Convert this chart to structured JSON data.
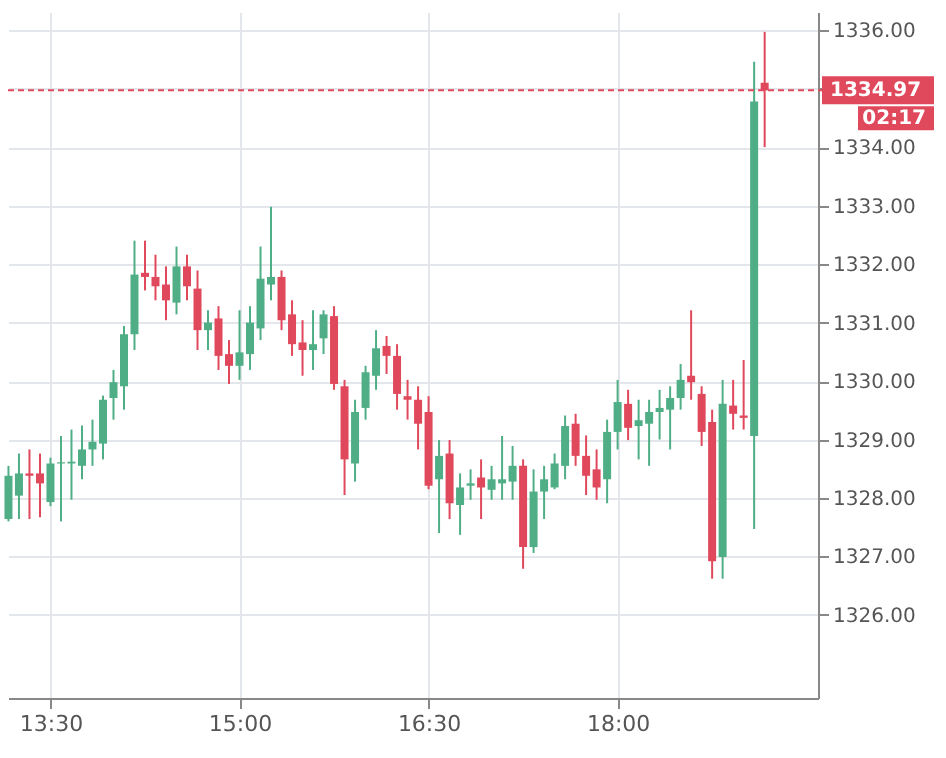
{
  "chart_data": {
    "type": "candlestick",
    "x": [
      13.1667,
      13.25,
      13.3333,
      13.4167,
      13.5,
      13.5833,
      13.6667,
      13.75,
      13.8333,
      13.9167,
      14.0,
      14.0833,
      14.1667,
      14.25,
      14.3333,
      14.4167,
      14.5,
      14.5833,
      14.6667,
      14.75,
      14.8333,
      14.9167,
      15.0,
      15.0833,
      15.1667,
      15.25,
      15.3333,
      15.4167,
      15.5,
      15.5833,
      15.6667,
      15.75,
      15.8333,
      15.9167,
      16.0,
      16.0833,
      16.1667,
      16.25,
      16.3333,
      16.4167,
      16.5,
      16.5833,
      16.6667,
      16.75,
      16.8333,
      16.9167,
      17.0,
      17.0833,
      17.1667,
      17.25,
      17.3333,
      17.4167,
      17.5,
      17.5833,
      17.6667,
      17.75,
      17.8333,
      17.9167,
      18.0,
      18.0833,
      18.1667,
      18.25,
      18.3333,
      18.4167,
      18.5,
      18.5833,
      18.6667,
      18.75,
      18.8333,
      18.9167,
      19.0,
      19.0833,
      19.1667
    ],
    "ohlc": [
      [
        1327.64,
        1328.55,
        1327.6,
        1328.38
      ],
      [
        1328.04,
        1328.76,
        1327.64,
        1328.42
      ],
      [
        1328.42,
        1328.83,
        1327.64,
        1328.38
      ],
      [
        1328.42,
        1328.76,
        1327.67,
        1328.25
      ],
      [
        1327.93,
        1328.69,
        1327.86,
        1328.59
      ],
      [
        1328.59,
        1329.06,
        1327.6,
        1328.61
      ],
      [
        1328.59,
        1329.17,
        1327.97,
        1328.62
      ],
      [
        1328.55,
        1329.24,
        1328.32,
        1328.83
      ],
      [
        1328.83,
        1329.34,
        1328.55,
        1328.96
      ],
      [
        1328.93,
        1329.75,
        1328.66,
        1329.68
      ],
      [
        1329.71,
        1330.19,
        1329.34,
        1329.98
      ],
      [
        1329.91,
        1330.94,
        1329.51,
        1330.8
      ],
      [
        1330.8,
        1332.4,
        1330.53,
        1331.82
      ],
      [
        1331.85,
        1332.4,
        1331.55,
        1331.78
      ],
      [
        1331.78,
        1332.16,
        1331.38,
        1331.62
      ],
      [
        1331.65,
        1331.96,
        1331.04,
        1331.38
      ],
      [
        1331.34,
        1332.3,
        1331.14,
        1331.96
      ],
      [
        1331.96,
        1332.16,
        1331.38,
        1331.62
      ],
      [
        1331.58,
        1331.89,
        1330.53,
        1330.87
      ],
      [
        1330.87,
        1331.21,
        1330.53,
        1331.0
      ],
      [
        1331.07,
        1331.28,
        1330.19,
        1330.43
      ],
      [
        1330.46,
        1330.7,
        1329.95,
        1330.26
      ],
      [
        1330.26,
        1331.21,
        1330.02,
        1330.49
      ],
      [
        1330.46,
        1331.28,
        1330.19,
        1331.0
      ],
      [
        1330.9,
        1332.3,
        1330.7,
        1331.75
      ],
      [
        1331.65,
        1332.98,
        1331.38,
        1331.78
      ],
      [
        1331.78,
        1331.89,
        1330.87,
        1331.04
      ],
      [
        1331.14,
        1331.38,
        1330.43,
        1330.63
      ],
      [
        1330.66,
        1331.04,
        1330.09,
        1330.53
      ],
      [
        1330.53,
        1331.21,
        1330.19,
        1330.63
      ],
      [
        1330.73,
        1331.21,
        1330.46,
        1331.14
      ],
      [
        1331.11,
        1331.28,
        1329.85,
        1329.95
      ],
      [
        1329.91,
        1330.02,
        1328.05,
        1328.66
      ],
      [
        1328.59,
        1329.68,
        1328.28,
        1329.47
      ],
      [
        1329.54,
        1330.26,
        1329.34,
        1330.15
      ],
      [
        1330.09,
        1330.87,
        1329.85,
        1330.56
      ],
      [
        1330.6,
        1330.77,
        1330.12,
        1330.43
      ],
      [
        1330.43,
        1330.63,
        1329.51,
        1329.78
      ],
      [
        1329.74,
        1330.02,
        1329.34,
        1329.68
      ],
      [
        1329.68,
        1329.91,
        1328.83,
        1329.27
      ],
      [
        1329.47,
        1329.74,
        1328.15,
        1328.21
      ],
      [
        1328.32,
        1328.99,
        1327.4,
        1328.72
      ],
      [
        1328.76,
        1328.99,
        1327.64,
        1327.91
      ],
      [
        1327.88,
        1328.42,
        1327.37,
        1328.18
      ],
      [
        1328.21,
        1328.49,
        1327.97,
        1328.25
      ],
      [
        1328.35,
        1328.66,
        1327.64,
        1328.18
      ],
      [
        1328.14,
        1328.55,
        1327.97,
        1328.32
      ],
      [
        1328.25,
        1329.06,
        1327.97,
        1328.32
      ],
      [
        1328.28,
        1328.89,
        1327.97,
        1328.55
      ],
      [
        1328.55,
        1328.66,
        1326.79,
        1327.16
      ],
      [
        1327.16,
        1328.49,
        1327.06,
        1328.11
      ],
      [
        1328.11,
        1328.55,
        1327.64,
        1328.32
      ],
      [
        1328.18,
        1328.76,
        1328.15,
        1328.59
      ],
      [
        1328.55,
        1329.41,
        1328.32,
        1329.23
      ],
      [
        1329.27,
        1329.44,
        1328.55,
        1328.72
      ],
      [
        1328.72,
        1329.07,
        1328.05,
        1328.38
      ],
      [
        1328.49,
        1328.83,
        1327.97,
        1328.18
      ],
      [
        1328.32,
        1329.34,
        1327.91,
        1329.13
      ],
      [
        1329.13,
        1330.02,
        1328.83,
        1329.64
      ],
      [
        1329.61,
        1329.85,
        1328.99,
        1329.2
      ],
      [
        1329.23,
        1329.68,
        1328.66,
        1329.33
      ],
      [
        1329.27,
        1329.68,
        1328.55,
        1329.47
      ],
      [
        1329.47,
        1329.85,
        1329.0,
        1329.54
      ],
      [
        1329.51,
        1329.91,
        1328.83,
        1329.71
      ],
      [
        1329.71,
        1330.29,
        1329.51,
        1330.02
      ],
      [
        1330.09,
        1331.21,
        1329.68,
        1329.98
      ],
      [
        1329.78,
        1329.91,
        1328.89,
        1329.13
      ],
      [
        1329.3,
        1329.51,
        1326.62,
        1326.92
      ],
      [
        1326.99,
        1330.02,
        1326.62,
        1329.61
      ],
      [
        1329.58,
        1330.02,
        1329.17,
        1329.44
      ],
      [
        1329.41,
        1330.36,
        1329.17,
        1329.37
      ],
      [
        1329.06,
        1335.46,
        1327.47,
        1334.78
      ],
      [
        1335.1,
        1335.97,
        1334.0,
        1334.97
      ]
    ],
    "colors": [
      "#4fae85",
      "#4fae85",
      "#e0485c",
      "#e0485c",
      "#4fae85",
      "#4fae85",
      "#4fae85",
      "#4fae85",
      "#4fae85",
      "#4fae85",
      "#4fae85",
      "#4fae85",
      "#4fae85",
      "#e0485c",
      "#e0485c",
      "#e0485c",
      "#4fae85",
      "#e0485c",
      "#e0485c",
      "#4fae85",
      "#e0485c",
      "#e0485c",
      "#4fae85",
      "#4fae85",
      "#4fae85",
      "#4fae85",
      "#e0485c",
      "#e0485c",
      "#e0485c",
      "#4fae85",
      "#4fae85",
      "#e0485c",
      "#e0485c",
      "#4fae85",
      "#4fae85",
      "#4fae85",
      "#e0485c",
      "#e0485c",
      "#e0485c",
      "#e0485c",
      "#e0485c",
      "#4fae85",
      "#e0485c",
      "#4fae85",
      "#4fae85",
      "#e0485c",
      "#4fae85",
      "#4fae85",
      "#4fae85",
      "#e0485c",
      "#4fae85",
      "#4fae85",
      "#4fae85",
      "#4fae85",
      "#e0485c",
      "#e0485c",
      "#e0485c",
      "#4fae85",
      "#4fae85",
      "#e0485c",
      "#4fae85",
      "#4fae85",
      "#4fae85",
      "#4fae85",
      "#4fae85",
      "#e0485c",
      "#e0485c",
      "#e0485c",
      "#4fae85",
      "#e0485c",
      "#e0485c",
      "#4fae85",
      "#e0485c"
    ],
    "xlim": [
      13.163,
      19.59
    ],
    "xticks": [
      {
        "value": 13.5,
        "label": "13:30"
      },
      {
        "value": 15,
        "label": "15:00"
      },
      {
        "value": 16.5,
        "label": "16:30"
      },
      {
        "value": 18,
        "label": "18:00"
      }
    ],
    "ylim": [
      1324.58,
      1336.31
    ],
    "yticks": [
      {
        "value": 1326,
        "label": "1326.00"
      },
      {
        "value": 1327,
        "label": "1327.00"
      },
      {
        "value": 1328,
        "label": "1328.00"
      },
      {
        "value": 1329,
        "label": "1329.00"
      },
      {
        "value": 1330,
        "label": "1330.00"
      },
      {
        "value": 1331,
        "label": "1331.00"
      },
      {
        "value": 1332,
        "label": "1332.00"
      },
      {
        "value": 1333,
        "label": "1333.00"
      },
      {
        "value": 1334,
        "label": "1334.00"
      },
      {
        "value": 1335,
        "label": null
      },
      {
        "value": 1336,
        "label": "1336.00"
      }
    ],
    "ref_lines": [
      {
        "axis": "y",
        "value": 1334.97,
        "label": "1334.97",
        "color": "#e0485c",
        "line_style": "dashed"
      }
    ],
    "annotations": [
      "02:17"
    ],
    "grid": true
  }
}
